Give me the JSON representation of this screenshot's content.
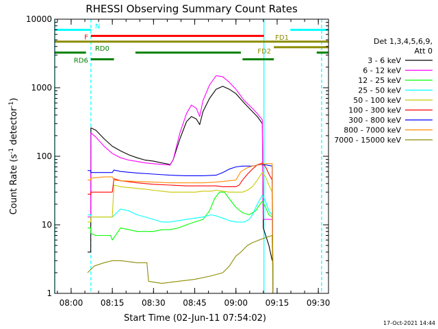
{
  "chart_data": {
    "type": "line",
    "title": "RHESSI Observing Summary Count Rates",
    "xlabel": "Start Time (02-Jun-11 07:54:02)",
    "ylabel_main": "Count Rate (s",
    "ylabel_sup": "-1",
    "ylabel_tail": " detector",
    "ylabel_end": ")",
    "yscale": "log",
    "ylim": [
      1,
      10000
    ],
    "xlim": [
      7.9006,
      9.5617
    ],
    "xticks": [
      {
        "label": "08:00",
        "hour": 8.0
      },
      {
        "label": "08:15",
        "hour": 8.25
      },
      {
        "label": "08:30",
        "hour": 8.5
      },
      {
        "label": "08:45",
        "hour": 8.75
      },
      {
        "label": "09:00",
        "hour": 9.0
      },
      {
        "label": "09:15",
        "hour": 9.25
      },
      {
        "label": "09:30",
        "hour": 9.5
      }
    ],
    "yticks": [
      {
        "label": "1",
        "value": 1
      },
      {
        "label": "10",
        "value": 10
      },
      {
        "label": "100",
        "value": 100
      },
      {
        "label": "1000",
        "value": 1000
      },
      {
        "label": "10000",
        "value": 10000
      }
    ],
    "legend": {
      "placement": "right",
      "header1": "Det 1,3,4,5,6,9,",
      "header2": "Att 0"
    },
    "series": [
      {
        "name": "3 - 6 keV",
        "color": "#000000",
        "points": [
          [
            7.95,
            null
          ],
          [
            8.09,
            null
          ],
          [
            8.1,
            4
          ],
          [
            8.119,
            4
          ],
          [
            8.12,
            260
          ],
          [
            8.15,
            240
          ],
          [
            8.2,
            180
          ],
          [
            8.25,
            140
          ],
          [
            8.3,
            120
          ],
          [
            8.35,
            105
          ],
          [
            8.4,
            95
          ],
          [
            8.45,
            88
          ],
          [
            8.5,
            85
          ],
          [
            8.55,
            80
          ],
          [
            8.59,
            77
          ],
          [
            8.6,
            75
          ],
          [
            8.62,
            90
          ],
          [
            8.66,
            180
          ],
          [
            8.7,
            320
          ],
          [
            8.73,
            380
          ],
          [
            8.76,
            350
          ],
          [
            8.78,
            290
          ],
          [
            8.8,
            450
          ],
          [
            8.84,
            700
          ],
          [
            8.88,
            950
          ],
          [
            8.92,
            1050
          ],
          [
            8.96,
            950
          ],
          [
            9.0,
            820
          ],
          [
            9.05,
            600
          ],
          [
            9.1,
            450
          ],
          [
            9.13,
            380
          ],
          [
            9.16,
            300
          ],
          [
            9.166,
            9
          ],
          [
            9.2,
            5
          ],
          [
            9.22,
            3
          ]
        ]
      },
      {
        "name": "6 - 12 keV",
        "color": "#ff00ff",
        "points": [
          [
            8.1,
            13
          ],
          [
            8.119,
            13
          ],
          [
            8.12,
            220
          ],
          [
            8.15,
            190
          ],
          [
            8.2,
            140
          ],
          [
            8.25,
            110
          ],
          [
            8.3,
            95
          ],
          [
            8.35,
            88
          ],
          [
            8.4,
            84
          ],
          [
            8.45,
            80
          ],
          [
            8.5,
            78
          ],
          [
            8.55,
            76
          ],
          [
            8.59,
            75
          ],
          [
            8.6,
            74
          ],
          [
            8.62,
            90
          ],
          [
            8.66,
            220
          ],
          [
            8.7,
            420
          ],
          [
            8.73,
            560
          ],
          [
            8.76,
            500
          ],
          [
            8.78,
            380
          ],
          [
            8.8,
            650
          ],
          [
            8.84,
            1100
          ],
          [
            8.88,
            1500
          ],
          [
            8.92,
            1450
          ],
          [
            8.96,
            1200
          ],
          [
            9.0,
            950
          ],
          [
            9.05,
            650
          ],
          [
            9.1,
            500
          ],
          [
            9.13,
            420
          ],
          [
            9.16,
            340
          ],
          [
            9.166,
            12
          ],
          [
            9.22,
            12
          ]
        ]
      },
      {
        "name": "12 - 25 keV",
        "color": "#00ff00",
        "points": [
          [
            8.1,
            9
          ],
          [
            8.119,
            9
          ],
          [
            8.12,
            7.5
          ],
          [
            8.15,
            7
          ],
          [
            8.2,
            7
          ],
          [
            8.24,
            7
          ],
          [
            8.25,
            6
          ],
          [
            8.3,
            9
          ],
          [
            8.35,
            8.5
          ],
          [
            8.4,
            8
          ],
          [
            8.45,
            8
          ],
          [
            8.5,
            8
          ],
          [
            8.55,
            8.5
          ],
          [
            8.6,
            8.5
          ],
          [
            8.65,
            9
          ],
          [
            8.7,
            10
          ],
          [
            8.75,
            11
          ],
          [
            8.8,
            12
          ],
          [
            8.84,
            16
          ],
          [
            8.87,
            24
          ],
          [
            8.9,
            30
          ],
          [
            8.93,
            30
          ],
          [
            8.96,
            24
          ],
          [
            9.0,
            18
          ],
          [
            9.04,
            15
          ],
          [
            9.08,
            14
          ],
          [
            9.12,
            16
          ],
          [
            9.14,
            19
          ],
          [
            9.16,
            22
          ],
          [
            9.18,
            18
          ],
          [
            9.2,
            14
          ],
          [
            9.22,
            13
          ]
        ]
      },
      {
        "name": "25 - 50 keV",
        "color": "#00ffff",
        "points": [
          [
            8.1,
            14
          ],
          [
            8.119,
            14
          ],
          [
            8.12,
            13
          ],
          [
            8.2,
            13
          ],
          [
            8.25,
            13
          ],
          [
            8.3,
            17
          ],
          [
            8.35,
            16
          ],
          [
            8.4,
            14
          ],
          [
            8.45,
            13
          ],
          [
            8.5,
            12
          ],
          [
            8.55,
            11
          ],
          [
            8.6,
            11
          ],
          [
            8.65,
            11.5
          ],
          [
            8.7,
            12
          ],
          [
            8.75,
            12.5
          ],
          [
            8.8,
            13
          ],
          [
            8.85,
            14
          ],
          [
            8.88,
            13.5
          ],
          [
            8.92,
            12.5
          ],
          [
            8.96,
            11.5
          ],
          [
            9.0,
            11
          ],
          [
            9.05,
            11
          ],
          [
            9.08,
            12
          ],
          [
            9.1,
            14
          ],
          [
            9.13,
            20
          ],
          [
            9.16,
            27
          ],
          [
            9.18,
            22
          ],
          [
            9.2,
            16
          ],
          [
            9.22,
            14
          ]
        ]
      },
      {
        "name": "50 - 100 keV",
        "color": "#c8c800",
        "points": [
          [
            8.1,
            11
          ],
          [
            8.119,
            11
          ],
          [
            8.12,
            13
          ],
          [
            8.2,
            13
          ],
          [
            8.25,
            13
          ],
          [
            8.26,
            38
          ],
          [
            8.3,
            36
          ],
          [
            8.35,
            35
          ],
          [
            8.4,
            34
          ],
          [
            8.45,
            33
          ],
          [
            8.5,
            32
          ],
          [
            8.55,
            31
          ],
          [
            8.6,
            30
          ],
          [
            8.65,
            30
          ],
          [
            8.7,
            30
          ],
          [
            8.75,
            30
          ],
          [
            8.8,
            31
          ],
          [
            8.85,
            31
          ],
          [
            8.88,
            32
          ],
          [
            8.92,
            31
          ],
          [
            8.96,
            30
          ],
          [
            9.0,
            30
          ],
          [
            9.04,
            30
          ],
          [
            9.07,
            32
          ],
          [
            9.1,
            36
          ],
          [
            9.13,
            45
          ],
          [
            9.16,
            58
          ],
          [
            9.18,
            50
          ],
          [
            9.2,
            38
          ],
          [
            9.22,
            30
          ],
          [
            9.225,
            1
          ],
          [
            9.23,
            null
          ]
        ]
      },
      {
        "name": "100 - 300 keV",
        "color": "#ff0000",
        "points": [
          [
            8.1,
            28
          ],
          [
            8.119,
            28
          ],
          [
            8.12,
            30
          ],
          [
            8.2,
            30
          ],
          [
            8.25,
            30
          ],
          [
            8.26,
            47
          ],
          [
            8.3,
            44
          ],
          [
            8.4,
            41
          ],
          [
            8.5,
            39
          ],
          [
            8.6,
            38
          ],
          [
            8.7,
            37
          ],
          [
            8.8,
            37
          ],
          [
            8.88,
            37
          ],
          [
            8.92,
            36
          ],
          [
            8.96,
            36
          ],
          [
            9.0,
            36
          ],
          [
            9.02,
            38
          ],
          [
            9.04,
            45
          ],
          [
            9.07,
            55
          ],
          [
            9.1,
            65
          ],
          [
            9.13,
            75
          ],
          [
            9.16,
            80
          ],
          [
            9.18,
            70
          ],
          [
            9.2,
            55
          ],
          [
            9.22,
            45
          ],
          [
            9.225,
            1
          ],
          [
            9.23,
            null
          ]
        ]
      },
      {
        "name": "300 - 800 keV",
        "color": "#0000ff",
        "points": [
          [
            8.1,
            62
          ],
          [
            8.119,
            62
          ],
          [
            8.12,
            58
          ],
          [
            8.2,
            58
          ],
          [
            8.25,
            58
          ],
          [
            8.26,
            63
          ],
          [
            8.3,
            60
          ],
          [
            8.4,
            57
          ],
          [
            8.5,
            55
          ],
          [
            8.6,
            53
          ],
          [
            8.7,
            52
          ],
          [
            8.8,
            52
          ],
          [
            8.88,
            53
          ],
          [
            8.92,
            58
          ],
          [
            8.96,
            65
          ],
          [
            9.0,
            70
          ],
          [
            9.04,
            72
          ],
          [
            9.08,
            72
          ],
          [
            9.1,
            72
          ],
          [
            9.14,
            75
          ],
          [
            9.18,
            75
          ],
          [
            9.22,
            72
          ],
          [
            9.225,
            1
          ],
          [
            9.23,
            null
          ]
        ]
      },
      {
        "name": "800 - 7000 keV",
        "color": "#ff8c00",
        "points": [
          [
            8.1,
            45
          ],
          [
            8.119,
            45
          ],
          [
            8.12,
            48
          ],
          [
            8.2,
            50
          ],
          [
            8.25,
            50
          ],
          [
            8.26,
            45
          ],
          [
            8.3,
            44
          ],
          [
            8.4,
            43
          ],
          [
            8.5,
            42
          ],
          [
            8.6,
            41
          ],
          [
            8.7,
            41
          ],
          [
            8.8,
            41
          ],
          [
            8.88,
            42
          ],
          [
            8.92,
            43
          ],
          [
            8.96,
            44
          ],
          [
            9.0,
            45
          ],
          [
            9.03,
            60
          ],
          [
            9.07,
            68
          ],
          [
            9.1,
            72
          ],
          [
            9.14,
            75
          ],
          [
            9.18,
            78
          ],
          [
            9.22,
            78
          ],
          [
            9.225,
            1
          ],
          [
            9.23,
            null
          ]
        ]
      },
      {
        "name": "7000 - 15000 keV",
        "color": "#8b8b00",
        "points": [
          [
            8.1,
            2
          ],
          [
            8.14,
            2.5
          ],
          [
            8.2,
            2.8
          ],
          [
            8.25,
            3
          ],
          [
            8.3,
            3
          ],
          [
            8.4,
            2.8
          ],
          [
            8.46,
            2.8
          ],
          [
            8.47,
            1.5
          ],
          [
            8.55,
            1.4
          ],
          [
            8.65,
            1.5
          ],
          [
            8.75,
            1.6
          ],
          [
            8.85,
            1.8
          ],
          [
            8.92,
            2
          ],
          [
            8.96,
            2.5
          ],
          [
            9.0,
            3.5
          ],
          [
            9.03,
            4
          ],
          [
            9.07,
            5
          ],
          [
            9.1,
            5.5
          ],
          [
            9.14,
            6
          ],
          [
            9.18,
            6.5
          ],
          [
            9.22,
            7
          ],
          [
            9.225,
            1
          ],
          [
            9.23,
            null
          ]
        ]
      }
    ],
    "state_bars": [
      {
        "label": "N",
        "color": "#00ffff",
        "level": 7000,
        "segments": [
          [
            7.9,
            8.12
          ],
          [
            9.33,
            9.56
          ]
        ]
      },
      {
        "label": "F",
        "color": "#ff0000",
        "level": 5700,
        "segments": [
          [
            8.12,
            9.17
          ]
        ]
      },
      {
        "label": "FD1",
        "color": "#8b8b00",
        "level": 4700,
        "segments": [
          [
            7.9,
            9.56
          ]
        ]
      },
      {
        "label": "FD2",
        "color": "#8b8b00",
        "level": 3900,
        "segments": [
          [
            9.23,
            9.56
          ]
        ]
      },
      {
        "label": "RD0",
        "color": "#008000",
        "level": 3250,
        "segments": [
          [
            7.9,
            8.09
          ],
          [
            8.39,
            9.03
          ],
          [
            9.49,
            9.56
          ]
        ]
      },
      {
        "label": "RD6",
        "color": "#008000",
        "level": 2600,
        "segments": [
          [
            8.12,
            8.26
          ],
          [
            9.04,
            9.23
          ]
        ]
      }
    ],
    "vlines": [
      {
        "hour": 7.9,
        "color": "#00ffff",
        "style": "solid"
      },
      {
        "hour": 8.12,
        "color": "#00ffff",
        "style": "dashed"
      },
      {
        "hour": 9.17,
        "color": "#00ffff",
        "style": "solid"
      },
      {
        "hour": 9.52,
        "color": "#00ffff",
        "style": "dashed"
      }
    ]
  },
  "footer": {
    "timestamp": "17-Oct-2021 14:44"
  }
}
